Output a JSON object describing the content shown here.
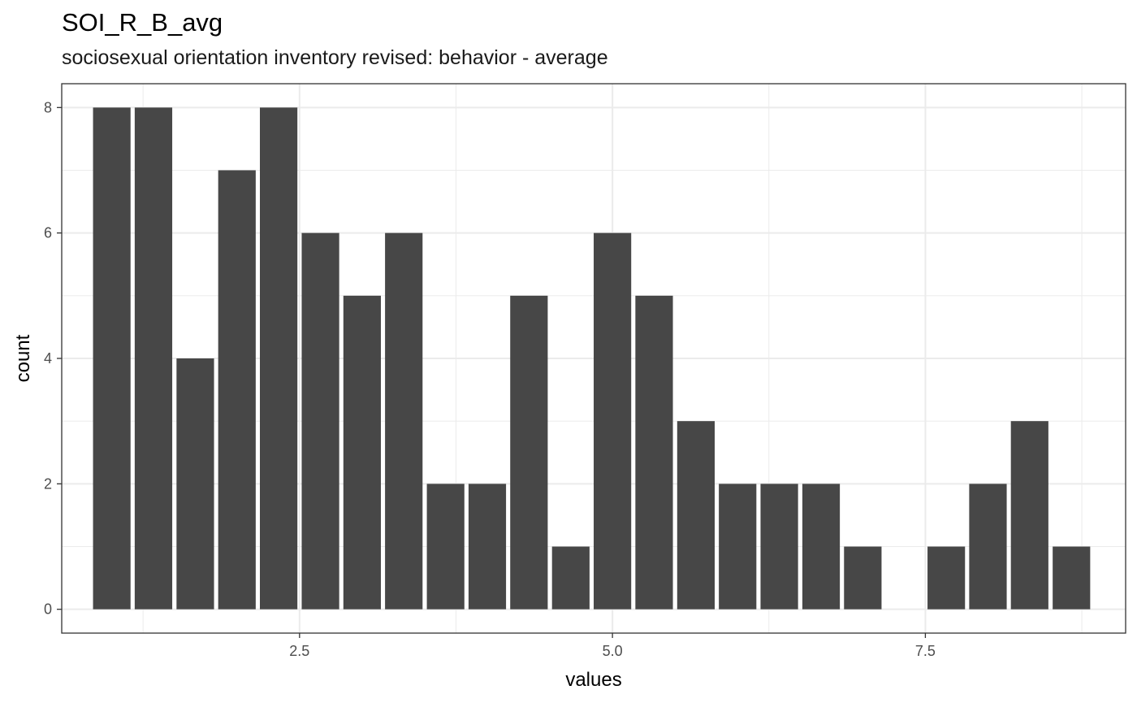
{
  "chart_data": {
    "type": "bar",
    "title": "SOI_R_B_avg",
    "subtitle": "sociosexual orientation inventory revised: behavior - average",
    "xlabel": "values",
    "ylabel": "count",
    "bin_width": 0.333,
    "bins": [
      {
        "x": 1.0,
        "count": 8
      },
      {
        "x": 1.333,
        "count": 8
      },
      {
        "x": 1.667,
        "count": 4
      },
      {
        "x": 2.0,
        "count": 7
      },
      {
        "x": 2.333,
        "count": 8
      },
      {
        "x": 2.667,
        "count": 6
      },
      {
        "x": 3.0,
        "count": 5
      },
      {
        "x": 3.333,
        "count": 6
      },
      {
        "x": 3.667,
        "count": 2
      },
      {
        "x": 4.0,
        "count": 2
      },
      {
        "x": 4.333,
        "count": 5
      },
      {
        "x": 4.667,
        "count": 1
      },
      {
        "x": 5.0,
        "count": 6
      },
      {
        "x": 5.333,
        "count": 5
      },
      {
        "x": 5.667,
        "count": 3
      },
      {
        "x": 6.0,
        "count": 2
      },
      {
        "x": 6.333,
        "count": 2
      },
      {
        "x": 6.667,
        "count": 2
      },
      {
        "x": 7.0,
        "count": 1
      },
      {
        "x": 7.333,
        "count": 0
      },
      {
        "x": 7.667,
        "count": 1
      },
      {
        "x": 8.0,
        "count": 2
      },
      {
        "x": 8.333,
        "count": 3
      },
      {
        "x": 8.667,
        "count": 1
      }
    ],
    "xlim": [
      0.6,
      9.1
    ],
    "ylim": [
      -0.38,
      8.38
    ],
    "x_ticks": [
      2.5,
      5.0,
      7.5
    ],
    "x_tick_labels": [
      "2.5",
      "5.0",
      "7.5"
    ],
    "y_ticks": [
      0,
      2,
      4,
      6,
      8
    ],
    "y_tick_labels": [
      "0",
      "2",
      "4",
      "6",
      "8"
    ],
    "grid": true,
    "bar_color": "#474747",
    "grid_color": "#ebebeb",
    "panel_border_color": "#333333"
  }
}
